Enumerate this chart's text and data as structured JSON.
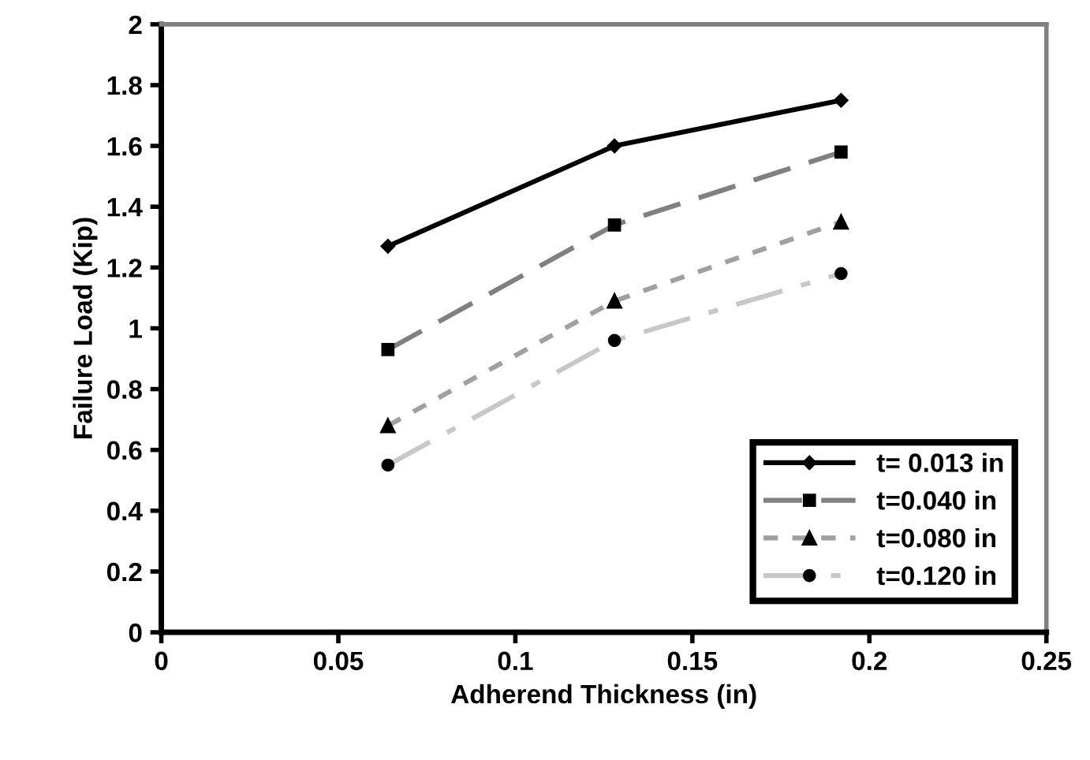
{
  "chart_data": {
    "type": "line",
    "xlabel": "Adherend Thickness (in)",
    "ylabel": "Failure Load (Kip)",
    "x": [
      0.064,
      0.128,
      0.192
    ],
    "series": [
      {
        "name": "t= 0.013 in",
        "color": "#000000",
        "marker": "diamond",
        "line_style": "solid",
        "values": [
          1.27,
          1.6,
          1.75
        ]
      },
      {
        "name": "t=0.040 in",
        "color": "#808080",
        "marker": "square",
        "line_style": "dashed",
        "values": [
          0.93,
          1.34,
          1.58
        ]
      },
      {
        "name": "t=0.080 in",
        "color": "#a0a0a0",
        "marker": "triangle",
        "line_style": "dotted",
        "values": [
          0.68,
          1.09,
          1.35
        ]
      },
      {
        "name": "t=0.120 in",
        "color": "#c8c8c8",
        "marker": "circle",
        "line_style": "dashdot",
        "values": [
          0.55,
          0.96,
          1.18
        ]
      }
    ],
    "xlim": [
      0,
      0.25
    ],
    "xticks": [
      0,
      0.05,
      0.1,
      0.15,
      0.2,
      0.25
    ],
    "ylim": [
      0,
      2
    ],
    "yticks": [
      0,
      0.2,
      0.4,
      0.6,
      0.8,
      1,
      1.2,
      1.4,
      1.6,
      1.8,
      2
    ],
    "grid": false,
    "legend": "bottom right"
  }
}
